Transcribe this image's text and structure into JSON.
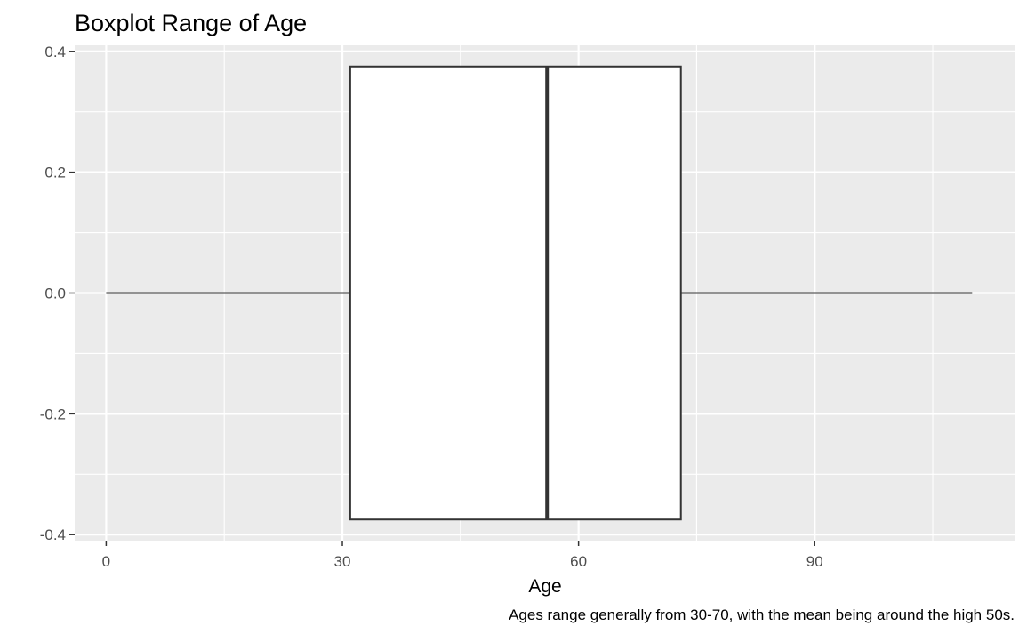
{
  "chart_data": {
    "type": "boxplot",
    "title": "Boxplot Range of Age",
    "xlabel": "Age",
    "ylabel": "",
    "caption": "Ages range generally from 30-70, with the mean being around the high 50s.",
    "xlim": [
      -4,
      115.5
    ],
    "ylim": [
      -0.41,
      0.41
    ],
    "x_ticks": [
      0,
      30,
      60,
      90
    ],
    "x_tick_labels": [
      "0",
      "30",
      "60",
      "90"
    ],
    "y_ticks": [
      -0.4,
      -0.2,
      0.0,
      0.2,
      0.4
    ],
    "y_tick_labels": [
      "-0.4",
      "-0.2",
      "0.0",
      "0.2",
      "0.4"
    ],
    "box": {
      "min": 0,
      "q1": 31,
      "median": 56,
      "q3": 73,
      "max": 110,
      "y_low": -0.375,
      "y_high": 0.375
    },
    "grid": true,
    "colors": {
      "panel_background": "#ebebeb",
      "grid_line": "#ffffff",
      "box_fill": "#ffffff",
      "box_stroke": "#333333",
      "tick_mark": "#333333",
      "tick_label": "#4d4d4d"
    }
  }
}
